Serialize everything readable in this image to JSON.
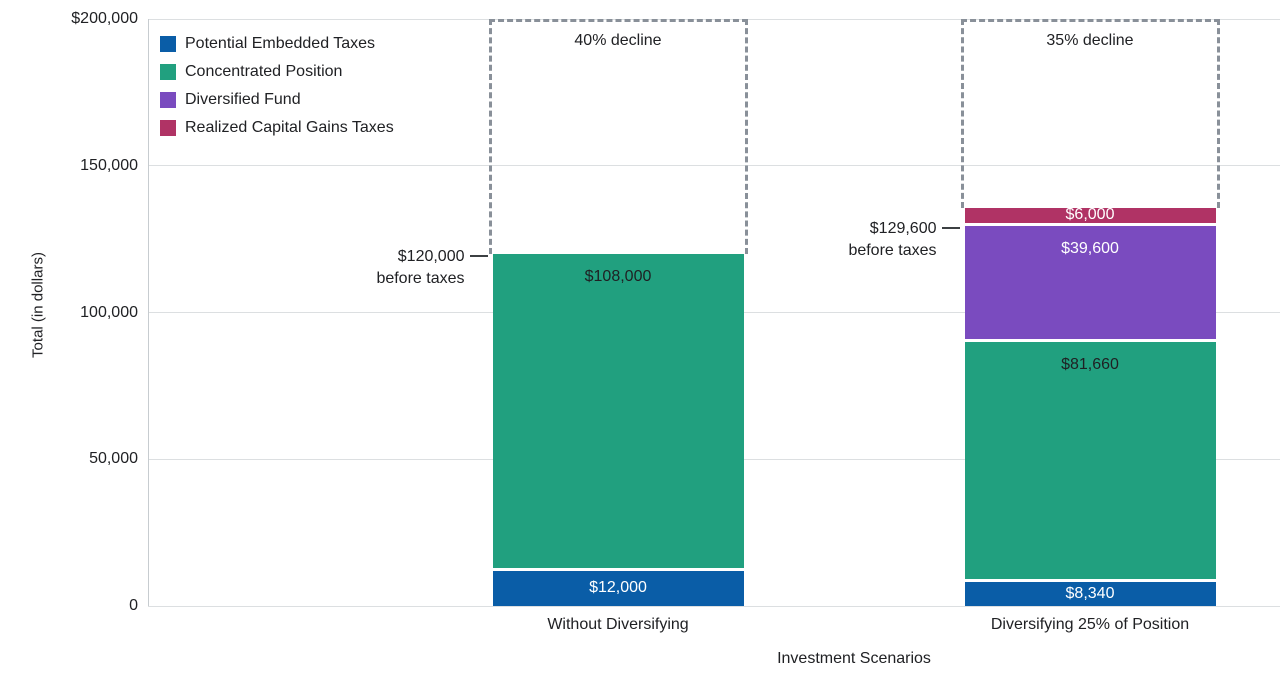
{
  "chart_data": {
    "type": "bar",
    "stacked": true,
    "xlabel": "Investment Scenarios",
    "ylabel": "Total (in dollars)",
    "ylim": [
      0,
      200000
    ],
    "grid": true,
    "legend_position": "top-left",
    "yticks": [
      {
        "value": 0,
        "label": "0"
      },
      {
        "value": 50000,
        "label": "50,000"
      },
      {
        "value": 100000,
        "label": "100,000"
      },
      {
        "value": 150000,
        "label": "150,000"
      },
      {
        "value": 200000,
        "label": "$200,000"
      }
    ],
    "categories": [
      "Without Diversifying",
      "Diversifying 25% of Position"
    ],
    "series": [
      {
        "name": "Potential Embedded Taxes",
        "color": "#0a5da7",
        "values": [
          12000,
          8340
        ],
        "labels": [
          "$12,000",
          "$8,340"
        ],
        "label_color": "#ffffff"
      },
      {
        "name": "Concentrated Position",
        "color": "#21a07f",
        "values": [
          108000,
          81660
        ],
        "labels": [
          "$108,000",
          "$81,660"
        ],
        "label_color": "#1f2023"
      },
      {
        "name": "Diversified Fund",
        "color": "#7a4bbf",
        "values": [
          0,
          39600
        ],
        "labels": [
          "",
          "$39,600"
        ],
        "label_color": "#ffffff"
      },
      {
        "name": "Realized Capital Gains Taxes",
        "color": "#b03365",
        "values": [
          0,
          6000
        ],
        "labels": [
          "",
          "$6,000"
        ],
        "label_color": "#ffffff"
      }
    ],
    "annotations": [
      {
        "bar": 0,
        "target_value": 120000,
        "lines": [
          "$120,000",
          "before taxes"
        ]
      },
      {
        "bar": 1,
        "target_value": 129600,
        "lines": [
          "$129,600",
          "before taxes"
        ]
      }
    ],
    "decline_boxes": [
      {
        "bar": 0,
        "label": "40% decline",
        "from_value": 200000,
        "to_value": 120000
      },
      {
        "bar": 1,
        "label": "35% decline",
        "from_value": 200000,
        "to_value": 135600
      }
    ],
    "colors": {
      "gridline": "#dcdfe1",
      "axis": "#c7ccd0",
      "dashed_box": "#899099",
      "text": "#202124",
      "separator": "#ffffff"
    }
  }
}
